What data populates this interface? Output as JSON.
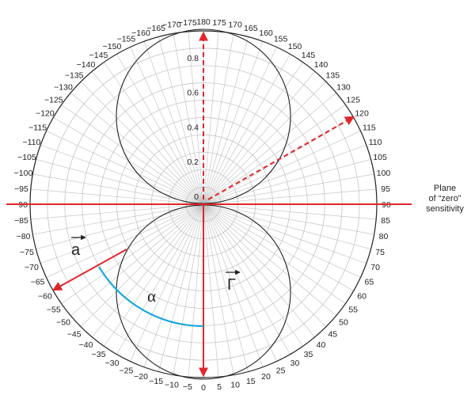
{
  "angle_labels": [
    "0",
    "5",
    "10",
    "15",
    "20",
    "25",
    "30",
    "35",
    "40",
    "45",
    "50",
    "55",
    "60",
    "65",
    "70",
    "75",
    "80",
    "85",
    "90",
    "95",
    "100",
    "105",
    "110",
    "115",
    "120",
    "125",
    "130",
    "135",
    "140",
    "145",
    "150",
    "155",
    "160",
    "165",
    "170",
    "175",
    "180",
    "−175",
    "−170",
    "−165",
    "−160",
    "−155",
    "−150",
    "−145",
    "−140",
    "−135",
    "−130",
    "−125",
    "−120",
    "−115",
    "−110",
    "−105",
    "−100",
    "−95",
    "−90",
    "−85",
    "−80",
    "−75",
    "−70",
    "−65",
    "−60",
    "−55",
    "−50",
    "−45",
    "−40",
    "−35",
    "−30",
    "−25",
    "−20",
    "−15",
    "−10",
    "−5"
  ],
  "radial_labels": [
    "0",
    "0.2",
    "0.4",
    "0.6",
    "0.8"
  ],
  "plane_caption": [
    "Plane",
    "of “zero”",
    "sensitivity"
  ],
  "vector_a_label": "a",
  "vector_gamma_label": "Γ",
  "angle_alpha_label": "α",
  "colors": {
    "red": "#e0262b",
    "blue": "#1aa7e0",
    "grid": "#bdbdbd",
    "outline": "#222222"
  }
}
